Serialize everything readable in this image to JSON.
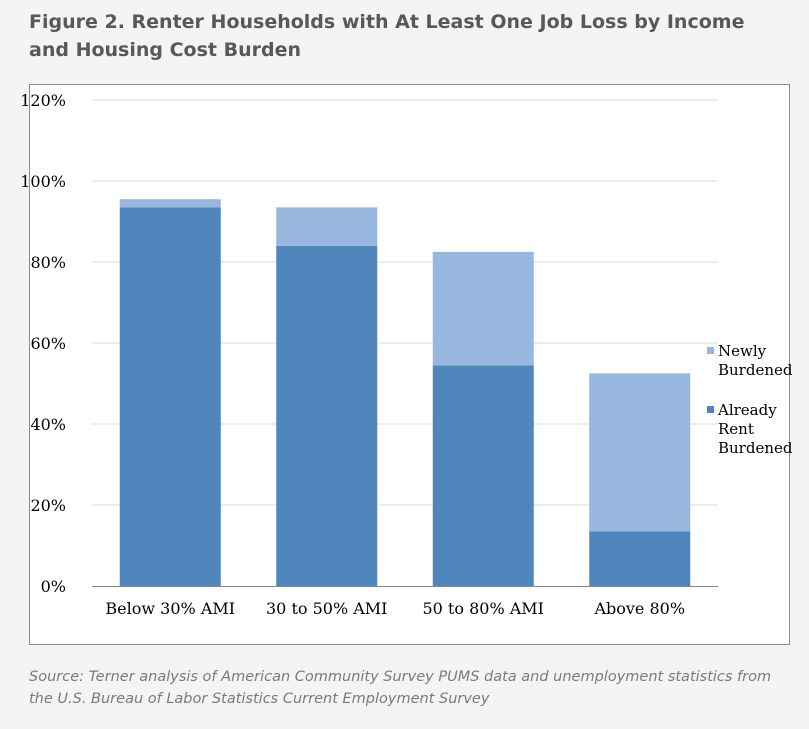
{
  "title": "Figure 2. Renter Households with At Least One Job Loss by Income and Housing Cost Burden",
  "source": "Source: Terner analysis of American Community Survey PUMS data and unemployment statistics from the U.S. Bureau of Labor Statistics Current Employment Survey",
  "colors": {
    "already": "#4f87bd",
    "newly": "#98b7de",
    "grid": "#d9d9d9",
    "axis": "#868686"
  },
  "chart_data": {
    "type": "bar",
    "stacked": true,
    "categories": [
      "Below 30% AMI",
      "30 to 50% AMI",
      "50 to 80% AMI",
      "Above 80%"
    ],
    "series": [
      {
        "name": "Already Rent Burdened",
        "legend_lines": [
          "Already",
          "Rent",
          "Burdened"
        ],
        "values": [
          93.5,
          84,
          54.5,
          13.5
        ]
      },
      {
        "name": "Newly Burdened",
        "legend_lines": [
          "Newly",
          "Burdened"
        ],
        "values": [
          2,
          9.5,
          28,
          39
        ]
      }
    ],
    "yticks": [
      "0%",
      "20%",
      "40%",
      "60%",
      "80%",
      "100%",
      "120%"
    ],
    "ylim": [
      0,
      120
    ],
    "grid": true,
    "legend": "right"
  }
}
